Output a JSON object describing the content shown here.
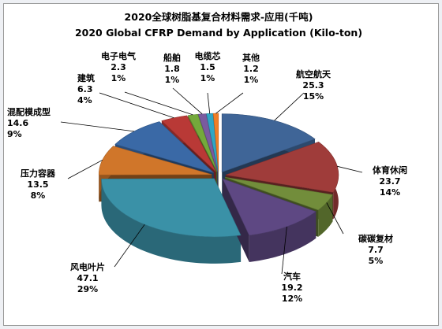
{
  "chart_data": {
    "type": "pie",
    "title": "2020全球树脂基复合材料需求-应用(千吨)",
    "subtitle": "2020 Global CFRP Demand by Application (Kilo-ton)",
    "legend": "none",
    "labels_on_chart": true,
    "categories": [
      "航空航天",
      "体育休闲",
      "碳碳复材",
      "汽车",
      "风电叶片",
      "压力容器",
      "混配模成型",
      "建筑",
      "电子电气",
      "船舶",
      "电缆芯",
      "其他"
    ],
    "values": [
      25.3,
      23.7,
      7.7,
      19.2,
      47.1,
      13.5,
      14.6,
      6.3,
      2.3,
      1.8,
      1.5,
      1.2
    ],
    "value_labels": [
      "25.3",
      "23.7",
      "7.7",
      "19.2",
      "47.1",
      "13.5",
      "14.6",
      "6.3",
      "2.3",
      "1.8",
      "1.5",
      "1.2"
    ],
    "percent_labels": [
      "15%",
      "14%",
      "5%",
      "12%",
      "29%",
      "8%",
      "9%",
      "4%",
      "1%",
      "1%",
      "1%",
      "1%"
    ],
    "colors": [
      "#3f6597",
      "#9f3c3a",
      "#728d3b",
      "#5e4883",
      "#3a91a7",
      "#d0762a",
      "#3a69a6",
      "#b93936",
      "#74a93b",
      "#7a5b9f",
      "#2fa6c5",
      "#f07e26"
    ],
    "exploded": true,
    "three_d": true
  }
}
